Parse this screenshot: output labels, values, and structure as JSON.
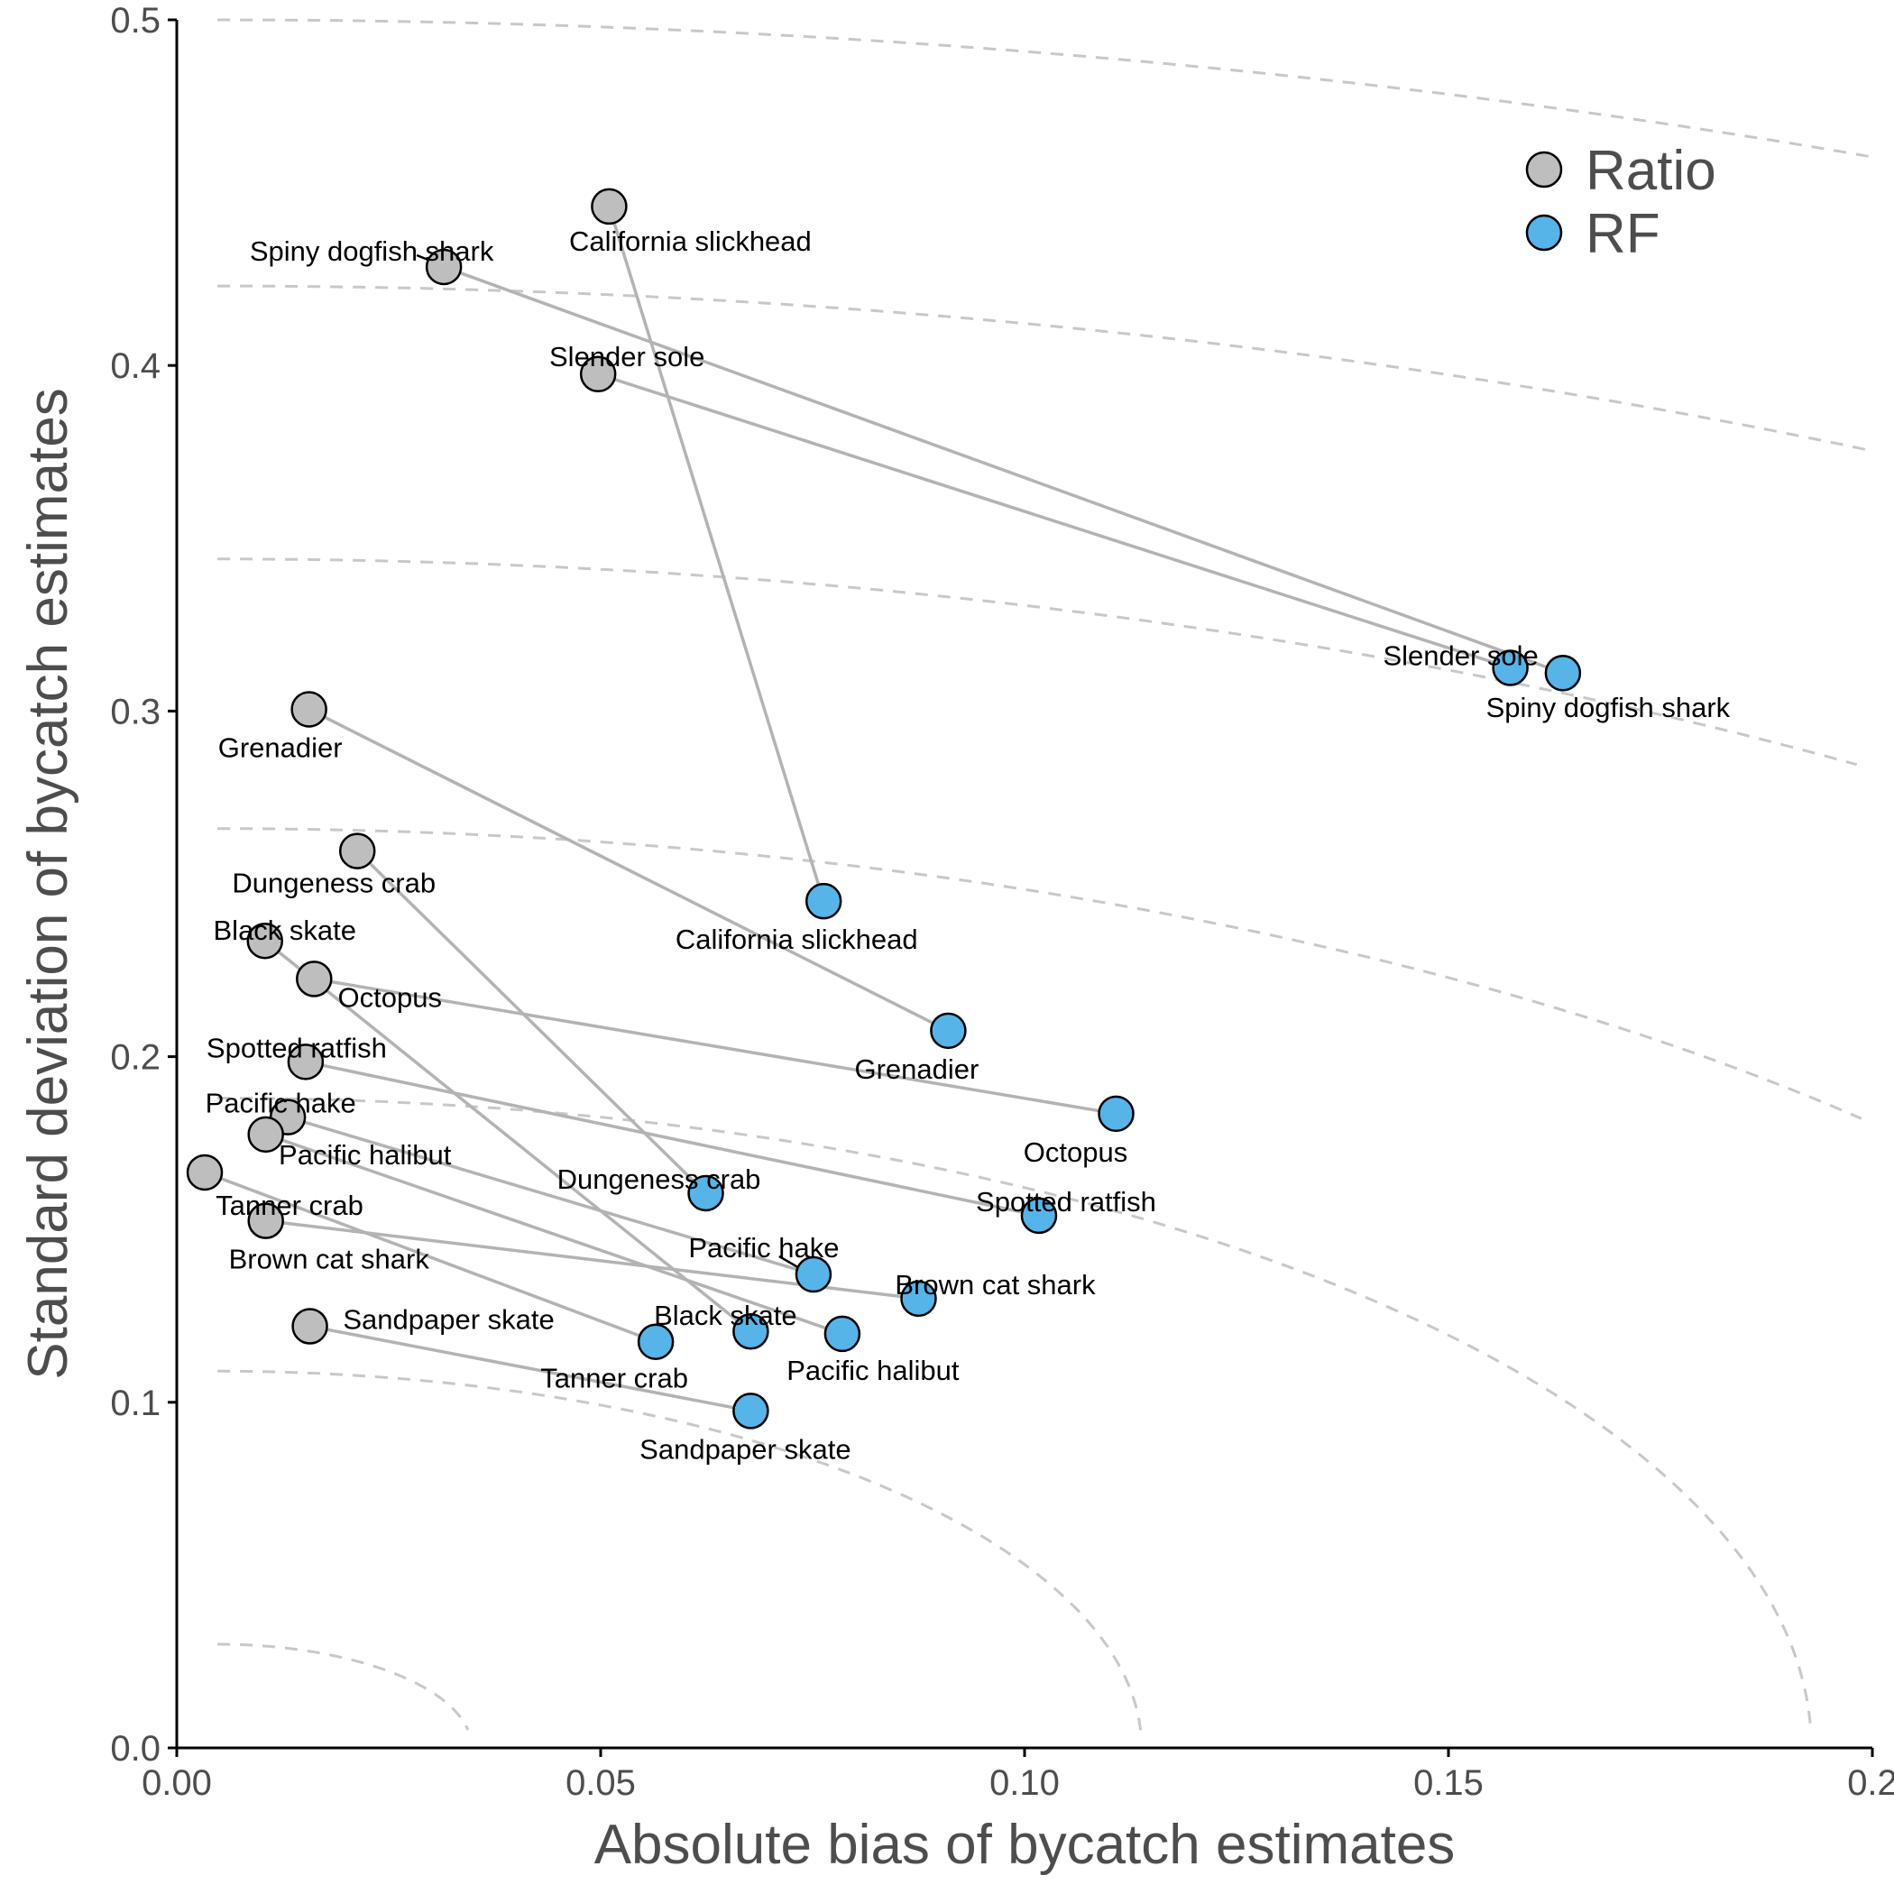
{
  "chart_data": {
    "type": "scatter",
    "xlabel": "Absolute bias of bycatch estimates",
    "ylabel": "Standard deviation of bycatch estimates",
    "xlim": [
      0,
      0.2
    ],
    "ylim": [
      0,
      0.5
    ],
    "x_ticks": [
      "0.00",
      "0.05",
      "0.10",
      "0.15",
      "0.2"
    ],
    "y_ticks": [
      "0.0",
      "0.1",
      "0.2",
      "0.3",
      "0.4",
      "0.5"
    ],
    "grid": false,
    "reference_contours": {
      "style": "dashed",
      "color": "#c8c8c8",
      "description": "constant sqrt(bias^2 + sd^2)",
      "radii": [
        0.03,
        0.109,
        0.188,
        0.266,
        0.344,
        0.423,
        0.5
      ]
    },
    "legend": {
      "placement": "top-right",
      "entries": [
        {
          "name": "Ratio",
          "color": "#bebebe"
        },
        {
          "name": "RF",
          "color": "#56b4e9"
        }
      ]
    },
    "series": [
      {
        "name": "Ratio",
        "color": "#bebebe",
        "points": [
          {
            "species": "California slickhead",
            "x": 0.051,
            "y": 0.446
          },
          {
            "species": "Spiny dogfish shark",
            "x": 0.0315,
            "y": 0.4285
          },
          {
            "species": "Slender sole",
            "x": 0.0497,
            "y": 0.3975
          },
          {
            "species": "Grenadier",
            "x": 0.0156,
            "y": 0.3005
          },
          {
            "species": "Dungeness crab",
            "x": 0.0213,
            "y": 0.2595
          },
          {
            "species": "Black skate",
            "x": 0.0104,
            "y": 0.2335
          },
          {
            "species": "Octopus",
            "x": 0.0162,
            "y": 0.2225
          },
          {
            "species": "Spotted ratfish",
            "x": 0.0152,
            "y": 0.1985
          },
          {
            "species": "Pacific hake",
            "x": 0.0131,
            "y": 0.1825
          },
          {
            "species": "Pacific halibut",
            "x": 0.0105,
            "y": 0.1775
          },
          {
            "species": "Tanner crab",
            "x": 0.0033,
            "y": 0.1665
          },
          {
            "species": "Brown cat shark",
            "x": 0.0105,
            "y": 0.1525
          },
          {
            "species": "Sandpaper skate",
            "x": 0.0157,
            "y": 0.122
          }
        ]
      },
      {
        "name": "RF",
        "color": "#56b4e9",
        "points": [
          {
            "species": "Slender sole",
            "x": 0.1573,
            "y": 0.3125
          },
          {
            "species": "Spiny dogfish shark",
            "x": 0.1635,
            "y": 0.311
          },
          {
            "species": "California slickhead",
            "x": 0.0763,
            "y": 0.245
          },
          {
            "species": "Grenadier",
            "x": 0.091,
            "y": 0.2075
          },
          {
            "species": "Octopus",
            "x": 0.1108,
            "y": 0.1835
          },
          {
            "species": "Dungeness crab",
            "x": 0.0624,
            "y": 0.1605
          },
          {
            "species": "Spotted ratfish",
            "x": 0.1017,
            "y": 0.154
          },
          {
            "species": "Pacific hake",
            "x": 0.0751,
            "y": 0.137
          },
          {
            "species": "Brown cat shark",
            "x": 0.0875,
            "y": 0.13
          },
          {
            "species": "Black skate",
            "x": 0.0677,
            "y": 0.1205
          },
          {
            "species": "Pacific halibut",
            "x": 0.0785,
            "y": 0.1198
          },
          {
            "species": "Tanner crab",
            "x": 0.0565,
            "y": 0.1175
          },
          {
            "species": "Sandpaper skate",
            "x": 0.0677,
            "y": 0.0975
          }
        ]
      }
    ]
  }
}
